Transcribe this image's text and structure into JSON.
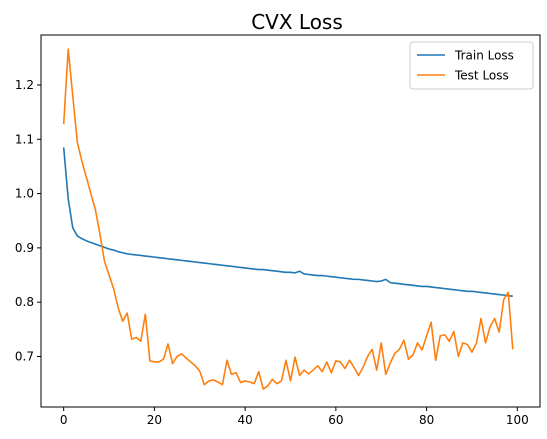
{
  "chart_data": {
    "type": "line",
    "title": "CVX Loss",
    "xlabel": "",
    "ylabel": "",
    "xlim": [
      -5,
      105
    ],
    "ylim": [
      0.607,
      1.292
    ],
    "xticks": [
      0,
      20,
      40,
      60,
      80,
      100
    ],
    "yticks": [
      0.7,
      0.8,
      0.9,
      1.0,
      1.1,
      1.2
    ],
    "grid": false,
    "legend_position": "top-right",
    "series": [
      {
        "name": "Train Loss",
        "color": "#1f77b4",
        "x": [
          0,
          1,
          2,
          3,
          4,
          5,
          6,
          7,
          8,
          9,
          10,
          11,
          12,
          13,
          14,
          15,
          16,
          17,
          18,
          19,
          20,
          21,
          22,
          23,
          24,
          25,
          26,
          27,
          28,
          29,
          30,
          31,
          32,
          33,
          34,
          35,
          36,
          37,
          38,
          39,
          40,
          41,
          42,
          43,
          44,
          45,
          46,
          47,
          48,
          49,
          50,
          51,
          52,
          53,
          54,
          55,
          56,
          57,
          58,
          59,
          60,
          61,
          62,
          63,
          64,
          65,
          66,
          67,
          68,
          69,
          70,
          71,
          72,
          73,
          74,
          75,
          76,
          77,
          78,
          79,
          80,
          81,
          82,
          83,
          84,
          85,
          86,
          87,
          88,
          89,
          90,
          91,
          92,
          93,
          94,
          95,
          96,
          97,
          98,
          99
        ],
        "values": [
          1.085,
          0.99,
          0.937,
          0.922,
          0.917,
          0.913,
          0.91,
          0.907,
          0.904,
          0.901,
          0.898,
          0.896,
          0.893,
          0.891,
          0.889,
          0.888,
          0.887,
          0.886,
          0.885,
          0.884,
          0.883,
          0.882,
          0.881,
          0.88,
          0.879,
          0.878,
          0.877,
          0.876,
          0.875,
          0.874,
          0.873,
          0.872,
          0.871,
          0.87,
          0.869,
          0.868,
          0.867,
          0.866,
          0.865,
          0.864,
          0.863,
          0.862,
          0.861,
          0.86,
          0.86,
          0.859,
          0.858,
          0.857,
          0.856,
          0.855,
          0.855,
          0.854,
          0.857,
          0.852,
          0.851,
          0.85,
          0.849,
          0.849,
          0.848,
          0.847,
          0.846,
          0.845,
          0.844,
          0.843,
          0.842,
          0.842,
          0.841,
          0.84,
          0.839,
          0.838,
          0.839,
          0.842,
          0.836,
          0.835,
          0.834,
          0.833,
          0.832,
          0.831,
          0.83,
          0.829,
          0.829,
          0.828,
          0.827,
          0.826,
          0.825,
          0.824,
          0.823,
          0.822,
          0.821,
          0.82,
          0.82,
          0.819,
          0.818,
          0.817,
          0.816,
          0.815,
          0.814,
          0.813,
          0.812,
          0.811
        ]
      },
      {
        "name": "Test Loss",
        "color": "#ff7f0e",
        "x": [
          0,
          1,
          2,
          3,
          4,
          5,
          6,
          7,
          8,
          9,
          10,
          11,
          12,
          13,
          14,
          15,
          16,
          17,
          18,
          19,
          20,
          21,
          22,
          23,
          24,
          25,
          26,
          27,
          28,
          29,
          30,
          31,
          32,
          33,
          34,
          35,
          36,
          37,
          38,
          39,
          40,
          41,
          42,
          43,
          44,
          45,
          46,
          47,
          48,
          49,
          50,
          51,
          52,
          53,
          54,
          55,
          56,
          57,
          58,
          59,
          60,
          61,
          62,
          63,
          64,
          65,
          66,
          67,
          68,
          69,
          70,
          71,
          72,
          73,
          74,
          75,
          76,
          77,
          78,
          79,
          80,
          81,
          82,
          83,
          84,
          85,
          86,
          87,
          88,
          89,
          90,
          91,
          92,
          93,
          94,
          95,
          96,
          97,
          98,
          99
        ],
        "values": [
          1.128,
          1.266,
          1.18,
          1.095,
          1.06,
          1.03,
          1.0,
          0.97,
          0.925,
          0.875,
          0.85,
          0.825,
          0.79,
          0.765,
          0.78,
          0.732,
          0.735,
          0.728,
          0.778,
          0.692,
          0.69,
          0.69,
          0.695,
          0.723,
          0.687,
          0.7,
          0.705,
          0.697,
          0.69,
          0.683,
          0.673,
          0.648,
          0.655,
          0.657,
          0.653,
          0.648,
          0.693,
          0.667,
          0.67,
          0.652,
          0.655,
          0.653,
          0.65,
          0.672,
          0.64,
          0.646,
          0.658,
          0.65,
          0.655,
          0.693,
          0.655,
          0.699,
          0.665,
          0.675,
          0.668,
          0.675,
          0.683,
          0.672,
          0.69,
          0.67,
          0.692,
          0.69,
          0.678,
          0.693,
          0.68,
          0.665,
          0.68,
          0.7,
          0.713,
          0.675,
          0.725,
          0.667,
          0.688,
          0.706,
          0.713,
          0.73,
          0.695,
          0.703,
          0.725,
          0.712,
          0.738,
          0.763,
          0.693,
          0.738,
          0.74,
          0.728,
          0.746,
          0.7,
          0.725,
          0.722,
          0.708,
          0.725,
          0.77,
          0.725,
          0.755,
          0.77,
          0.745,
          0.805,
          0.818,
          0.713
        ]
      }
    ]
  }
}
